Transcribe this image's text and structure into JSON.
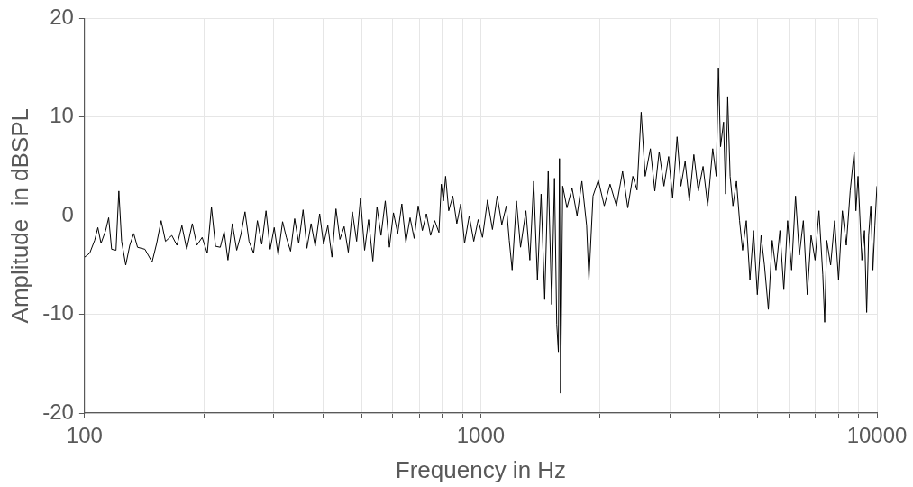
{
  "chart_data": {
    "type": "line",
    "xlabel": "Frequency in Hz",
    "ylabel": "Amplitude  in dBSPL",
    "log": "x",
    "grid": true,
    "color": "#000000",
    "xlim": [
      100,
      10000
    ],
    "xticks": [
      100,
      {
        "value": 200,
        "label": null
      },
      {
        "value": 300,
        "label": null
      },
      {
        "value": 400,
        "label": null
      },
      {
        "value": 500,
        "label": null
      },
      {
        "value": 600,
        "label": null
      },
      {
        "value": 700,
        "label": null
      },
      {
        "value": 800,
        "label": null
      },
      {
        "value": 900,
        "label": null
      },
      1000,
      {
        "value": 2000,
        "label": null
      },
      {
        "value": 3000,
        "label": null
      },
      {
        "value": 4000,
        "label": null
      },
      {
        "value": 5000,
        "label": null
      },
      {
        "value": 6000,
        "label": null
      },
      {
        "value": 7000,
        "label": null
      },
      {
        "value": 8000,
        "label": null
      },
      {
        "value": 9000,
        "label": null
      },
      10000
    ],
    "ylim": [
      -20,
      20
    ],
    "yticks": [
      -20,
      -10,
      0,
      10,
      20
    ],
    "x": [
      100,
      103,
      106,
      108,
      110,
      113,
      115,
      117,
      120,
      122,
      124,
      127,
      130,
      133,
      136,
      142,
      148,
      152,
      156,
      160,
      166,
      171,
      176,
      181,
      187,
      192,
      198,
      204,
      209,
      214,
      220,
      225,
      230,
      236,
      242,
      248,
      254,
      260,
      267,
      273,
      280,
      287,
      294,
      301,
      308,
      316,
      323,
      331,
      339,
      347,
      356,
      364,
      373,
      382,
      392,
      401,
      411,
      421,
      431,
      441,
      452,
      463,
      474,
      486,
      497,
      509,
      521,
      534,
      547,
      560,
      574,
      588,
      602,
      617,
      632,
      647,
      663,
      679,
      695,
      712,
      729,
      747,
      765,
      784,
      795,
      805,
      815,
      830,
      850,
      870,
      890,
      910,
      935,
      960,
      985,
      1010,
      1040,
      1070,
      1100,
      1130,
      1160,
      1180,
      1200,
      1230,
      1260,
      1300,
      1330,
      1360,
      1390,
      1420,
      1450,
      1480,
      1510,
      1535,
      1555,
      1570,
      1580,
      1590,
      1610,
      1650,
      1700,
      1750,
      1800,
      1850,
      1875,
      1920,
      1980,
      2050,
      2120,
      2200,
      2280,
      2350,
      2420,
      2480,
      2540,
      2600,
      2680,
      2750,
      2820,
      2900,
      2980,
      3050,
      3130,
      3200,
      3280,
      3360,
      3450,
      3540,
      3640,
      3740,
      3850,
      3930,
      3980,
      4030,
      4100,
      4150,
      4200,
      4260,
      4330,
      4420,
      4500,
      4580,
      4680,
      4780,
      4880,
      4990,
      5100,
      5200,
      5320,
      5440,
      5560,
      5690,
      5820,
      5950,
      6090,
      6230,
      6370,
      6520,
      6670,
      6820,
      6980,
      7140,
      7300,
      7380,
      7470,
      7640,
      7820,
      8000,
      8180,
      8370,
      8560,
      8760,
      8850,
      8960,
      9160,
      9300,
      9420,
      9530,
      9650,
      9770,
      9880,
      10000
    ],
    "values": [
      -4.2,
      -3.8,
      -2.5,
      -1.2,
      -2.8,
      -1.5,
      -0.2,
      -3.4,
      -3.5,
      2.5,
      -2.6,
      -5.0,
      -3.0,
      -1.8,
      -3.2,
      -3.4,
      -4.7,
      -2.8,
      -0.5,
      -2.6,
      -2.0,
      -3.0,
      -1.0,
      -3.4,
      -0.8,
      -3.0,
      -2.2,
      -3.8,
      0.9,
      -3.1,
      -3.2,
      -1.6,
      -4.5,
      -0.8,
      -3.5,
      -1.9,
      0.4,
      -2.6,
      -3.8,
      -0.5,
      -2.9,
      0.5,
      -3.4,
      -1.2,
      -4.0,
      -0.6,
      -2.2,
      -3.6,
      -0.3,
      -2.8,
      0.6,
      -3.3,
      -0.8,
      -3.1,
      0.2,
      -2.9,
      -1.0,
      -4.2,
      0.7,
      -2.4,
      -1.1,
      -3.7,
      0.4,
      -2.6,
      1.8,
      -3.5,
      -0.4,
      -4.6,
      0.9,
      -2.0,
      1.5,
      -3.2,
      0.3,
      -1.8,
      1.2,
      -2.7,
      -0.2,
      -2.3,
      1.0,
      -1.5,
      0.2,
      -2.0,
      -0.5,
      -1.7,
      3.2,
      1.5,
      4.0,
      0.5,
      2.0,
      -0.8,
      1.2,
      -2.8,
      0.0,
      -2.6,
      -0.4,
      -2.2,
      1.6,
      -1.4,
      2.0,
      -0.9,
      1.0,
      -2.5,
      -5.5,
      1.5,
      -3.2,
      0.5,
      -4.5,
      3.5,
      -6.5,
      2.2,
      -8.5,
      4.5,
      -9.0,
      3.8,
      -11.0,
      -13.8,
      5.8,
      -18.0,
      3.0,
      0.8,
      2.8,
      0.0,
      3.5,
      -1.0,
      -6.5,
      2.0,
      3.6,
      1.0,
      3.2,
      1.0,
      4.5,
      0.8,
      4.0,
      2.6,
      10.5,
      4.0,
      6.8,
      2.5,
      6.5,
      3.0,
      6.0,
      1.8,
      8.0,
      3.0,
      5.5,
      1.5,
      6.2,
      2.5,
      5.0,
      1.0,
      6.8,
      4.0,
      15.0,
      7.0,
      9.5,
      2.2,
      12.0,
      4.0,
      1.0,
      3.5,
      -0.5,
      -3.5,
      -0.5,
      -6.5,
      -1.5,
      -8.0,
      -2.0,
      -5.0,
      -9.5,
      -2.5,
      -5.5,
      -1.5,
      -7.5,
      -0.5,
      -5.5,
      2.0,
      -4.0,
      -0.5,
      -8.0,
      -2.0,
      -4.5,
      0.5,
      -6.0,
      -10.8,
      -2.5,
      -5.0,
      -0.5,
      -6.5,
      0.5,
      -3.0,
      2.5,
      6.5,
      0.5,
      4.0,
      -4.5,
      -1.5,
      -9.8,
      -2.0,
      1.0,
      -5.5,
      -1.0,
      3.0
    ]
  }
}
